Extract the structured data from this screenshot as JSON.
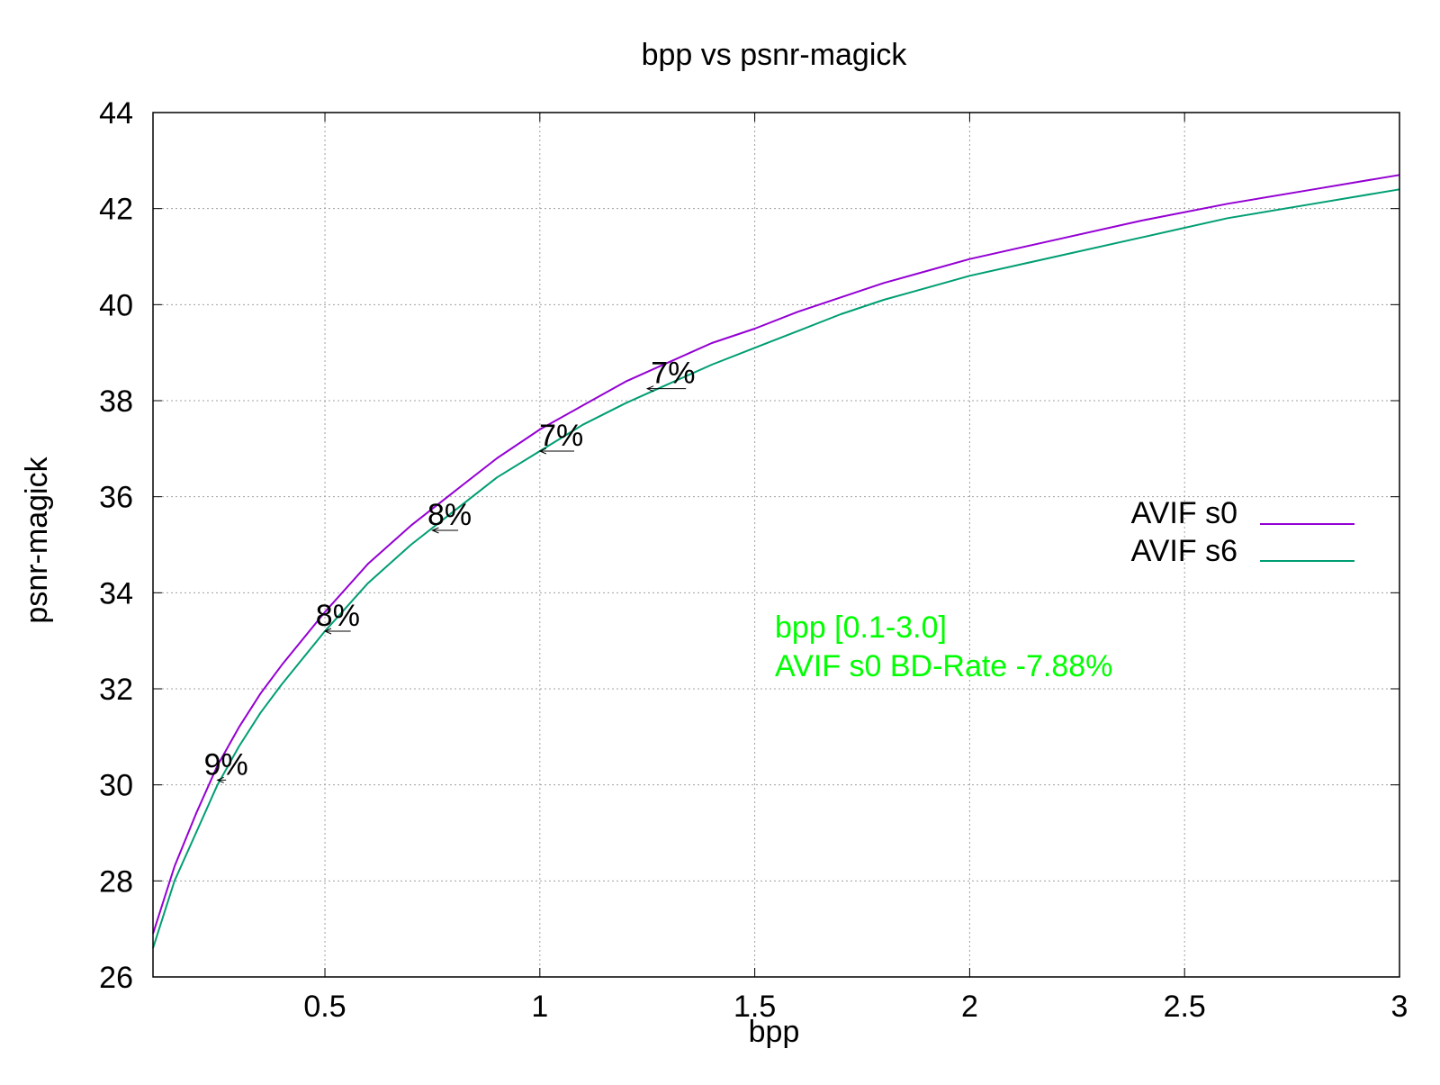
{
  "chart_data": {
    "type": "line",
    "title": "bpp vs psnr-magick",
    "xlabel": "bpp",
    "ylabel": "psnr-magick",
    "xlim": [
      0.1,
      3.0
    ],
    "ylim": [
      26,
      44
    ],
    "xticks": [
      0.5,
      1,
      1.5,
      2,
      2.5,
      3
    ],
    "xtick_labels": [
      "0.5",
      "1",
      "1.5",
      "2",
      "2.5",
      "3"
    ],
    "yticks": [
      26,
      28,
      30,
      32,
      34,
      36,
      38,
      40,
      42,
      44
    ],
    "ytick_labels": [
      "26",
      "28",
      "30",
      "32",
      "34",
      "36",
      "38",
      "40",
      "42",
      "44"
    ],
    "grid": true,
    "legend_position": "right",
    "series": [
      {
        "name": "AVIF s0",
        "color": "#9400d3",
        "x": [
          0.1,
          0.15,
          0.2,
          0.25,
          0.3,
          0.35,
          0.4,
          0.5,
          0.6,
          0.7,
          0.8,
          0.9,
          1.0,
          1.1,
          1.2,
          1.3,
          1.4,
          1.5,
          1.6,
          1.7,
          1.8,
          1.9,
          2.0,
          2.2,
          2.4,
          2.6,
          2.8,
          3.0
        ],
        "y": [
          26.9,
          28.3,
          29.4,
          30.4,
          31.2,
          31.9,
          32.5,
          33.6,
          34.6,
          35.4,
          36.1,
          36.8,
          37.4,
          37.9,
          38.4,
          38.8,
          39.2,
          39.5,
          39.85,
          40.15,
          40.45,
          40.7,
          40.95,
          41.35,
          41.75,
          42.1,
          42.4,
          42.7
        ]
      },
      {
        "name": "AVIF s6",
        "color": "#009e73",
        "x": [
          0.1,
          0.15,
          0.2,
          0.25,
          0.3,
          0.35,
          0.4,
          0.5,
          0.6,
          0.7,
          0.8,
          0.9,
          1.0,
          1.1,
          1.2,
          1.3,
          1.4,
          1.5,
          1.6,
          1.7,
          1.8,
          1.9,
          2.0,
          2.2,
          2.4,
          2.6,
          2.8,
          3.0
        ],
        "y": [
          26.6,
          28.0,
          29.0,
          30.0,
          30.8,
          31.5,
          32.1,
          33.2,
          34.2,
          35.0,
          35.7,
          36.4,
          36.95,
          37.5,
          37.95,
          38.35,
          38.75,
          39.1,
          39.45,
          39.8,
          40.1,
          40.35,
          40.6,
          41.0,
          41.4,
          41.8,
          42.1,
          42.4
        ]
      }
    ],
    "annotations": [
      {
        "text": "9%",
        "x": 0.27,
        "y": 30.1,
        "arrow_from_x": 0.27,
        "arrow_to_x": 0.25
      },
      {
        "text": "8%",
        "x": 0.53,
        "y": 33.2,
        "arrow_from_x": 0.56,
        "arrow_to_x": 0.5
      },
      {
        "text": "8%",
        "x": 0.79,
        "y": 35.3,
        "arrow_from_x": 0.81,
        "arrow_to_x": 0.75
      },
      {
        "text": "7%",
        "x": 1.05,
        "y": 36.95,
        "arrow_from_x": 1.08,
        "arrow_to_x": 1.0
      },
      {
        "text": "7%",
        "x": 1.31,
        "y": 38.25,
        "arrow_from_x": 1.34,
        "arrow_to_x": 1.25
      }
    ],
    "bd_rate_text": {
      "line1": "bpp [0.1-3.0]",
      "line2": "AVIF s0 BD-Rate -7.88%",
      "color": "#00ff00"
    }
  }
}
